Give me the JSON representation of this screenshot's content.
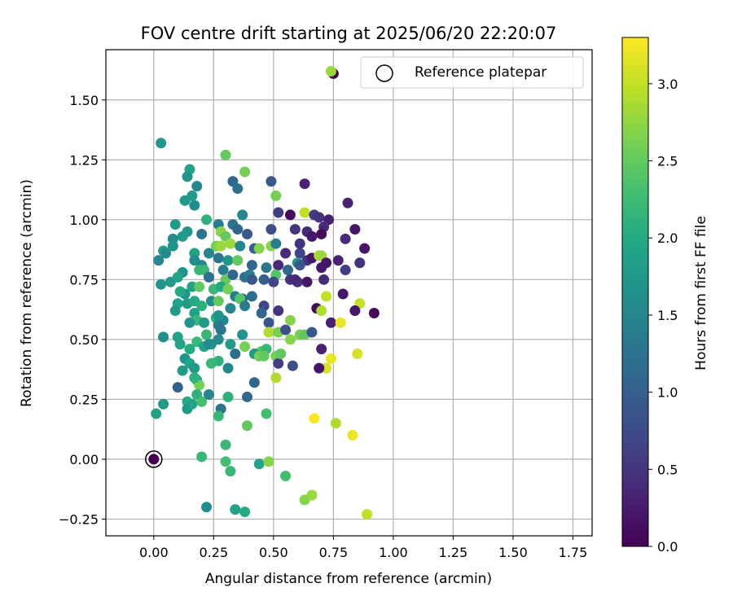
{
  "chart_data": {
    "type": "scatter",
    "title": "FOV centre drift starting at 2025/06/20 22:20:07",
    "xlabel": "Angular distance from reference (arcmin)",
    "ylabel": "Rotation from reference (arcmin)",
    "xlim": [
      -0.2,
      1.83
    ],
    "ylim": [
      -0.32,
      1.71
    ],
    "x_ticks": [
      0.0,
      0.25,
      0.5,
      0.75,
      1.0,
      1.25,
      1.5,
      1.75
    ],
    "x_tick_labels": [
      "0.00",
      "0.25",
      "0.50",
      "0.75",
      "1.00",
      "1.25",
      "1.50",
      "1.75"
    ],
    "y_ticks": [
      -0.25,
      0.0,
      0.25,
      0.5,
      0.75,
      1.0,
      1.25,
      1.5
    ],
    "y_tick_labels": [
      "−0.25",
      "0.00",
      "0.25",
      "0.50",
      "0.75",
      "1.00",
      "1.25",
      "1.50"
    ],
    "grid": true,
    "legend": {
      "placement": "top-right",
      "entries": [
        "Reference platepar"
      ]
    },
    "colorbar": {
      "label": "Hours from first FF file",
      "range": [
        0.0,
        3.3
      ],
      "ticks": [
        0.0,
        0.5,
        1.0,
        1.5,
        2.0,
        2.5,
        3.0
      ],
      "tick_labels": [
        "0.0",
        "0.5",
        "1.0",
        "1.5",
        "2.0",
        "2.5",
        "3.0"
      ],
      "colormap": "viridis"
    },
    "reference_point": {
      "x": 0.0,
      "y": 0.0,
      "c": 0.0
    },
    "points": [
      [
        0.75,
        1.61,
        0.05
      ],
      [
        0.74,
        1.62,
        2.8
      ],
      [
        0.03,
        1.32,
        1.7
      ],
      [
        0.3,
        1.27,
        2.5
      ],
      [
        0.33,
        1.16,
        1.1
      ],
      [
        0.35,
        1.13,
        1.2
      ],
      [
        0.38,
        1.2,
        2.6
      ],
      [
        0.49,
        1.16,
        0.9
      ],
      [
        0.15,
        1.21,
        1.9
      ],
      [
        0.14,
        1.18,
        1.7
      ],
      [
        0.18,
        1.14,
        1.5
      ],
      [
        0.16,
        1.1,
        1.8
      ],
      [
        0.63,
        1.15,
        0.3
      ],
      [
        0.51,
        1.1,
        2.6
      ],
      [
        0.13,
        1.08,
        1.8
      ],
      [
        0.17,
        1.06,
        1.6
      ],
      [
        0.81,
        1.07,
        0.3
      ],
      [
        0.63,
        1.03,
        3.0
      ],
      [
        0.57,
        1.02,
        0.1
      ],
      [
        0.52,
        1.03,
        0.6
      ],
      [
        0.67,
        1.02,
        0.6
      ],
      [
        0.69,
        1.01,
        0.5
      ],
      [
        0.73,
        1.0,
        0.3
      ],
      [
        0.71,
        0.97,
        0.4
      ],
      [
        0.22,
        1.0,
        2.1
      ],
      [
        0.27,
        0.98,
        1.4
      ],
      [
        0.33,
        0.98,
        1.3
      ],
      [
        0.37,
        1.02,
        1.5
      ],
      [
        0.09,
        0.98,
        1.8
      ],
      [
        0.14,
        0.95,
        1.7
      ],
      [
        0.2,
        0.94,
        1.3
      ],
      [
        0.28,
        0.95,
        2.7
      ],
      [
        0.3,
        0.93,
        2.5
      ],
      [
        0.39,
        0.94,
        0.9
      ],
      [
        0.49,
        0.96,
        0.8
      ],
      [
        0.59,
        0.96,
        0.5
      ],
      [
        0.64,
        0.95,
        0.4
      ],
      [
        0.66,
        0.93,
        0.2
      ],
      [
        0.7,
        0.94,
        0.1
      ],
      [
        0.84,
        0.96,
        0.2
      ],
      [
        0.8,
        0.92,
        0.4
      ],
      [
        0.12,
        0.93,
        1.8
      ],
      [
        0.08,
        0.92,
        1.6
      ],
      [
        0.08,
        0.89,
        1.7
      ],
      [
        0.04,
        0.87,
        1.9
      ],
      [
        0.17,
        0.86,
        1.9
      ],
      [
        0.23,
        0.86,
        1.5
      ],
      [
        0.26,
        0.89,
        2.6
      ],
      [
        0.28,
        0.89,
        2.8
      ],
      [
        0.32,
        0.9,
        2.8
      ],
      [
        0.36,
        0.89,
        1.5
      ],
      [
        0.42,
        0.88,
        1.0
      ],
      [
        0.44,
        0.88,
        2.7
      ],
      [
        0.49,
        0.89,
        2.7
      ],
      [
        0.51,
        0.9,
        1.4
      ],
      [
        0.55,
        0.86,
        0.4
      ],
      [
        0.61,
        0.86,
        0.7
      ],
      [
        0.64,
        0.83,
        0.5
      ],
      [
        0.66,
        0.84,
        0.2
      ],
      [
        0.69,
        0.85,
        2.9
      ],
      [
        0.7,
        0.85,
        2.8
      ],
      [
        0.72,
        0.82,
        0.2
      ],
      [
        0.77,
        0.83,
        0.3
      ],
      [
        0.8,
        0.79,
        0.6
      ],
      [
        0.86,
        0.82,
        0.5
      ],
      [
        0.88,
        0.88,
        0.2
      ],
      [
        0.02,
        0.83,
        1.5
      ],
      [
        0.05,
        0.86,
        1.6
      ],
      [
        0.17,
        0.83,
        1.6
      ],
      [
        0.2,
        0.81,
        1.5
      ],
      [
        0.27,
        0.84,
        1.3
      ],
      [
        0.31,
        0.83,
        1.7
      ],
      [
        0.35,
        0.83,
        2.5
      ],
      [
        0.41,
        0.81,
        1.1
      ],
      [
        0.47,
        0.8,
        1.3
      ],
      [
        0.52,
        0.81,
        0.4
      ],
      [
        0.56,
        0.79,
        1.1
      ],
      [
        0.6,
        0.82,
        1.7
      ],
      [
        0.61,
        0.81,
        0.9
      ],
      [
        0.7,
        0.8,
        0.2
      ],
      [
        0.12,
        0.78,
        1.7
      ],
      [
        0.19,
        0.79,
        2.2
      ],
      [
        0.21,
        0.79,
        2.2
      ],
      [
        0.23,
        0.76,
        1.2
      ],
      [
        0.29,
        0.79,
        1.4
      ],
      [
        0.3,
        0.75,
        2.5
      ],
      [
        0.33,
        0.77,
        1.1
      ],
      [
        0.38,
        0.76,
        1.2
      ],
      [
        0.4,
        0.77,
        1.4
      ],
      [
        0.41,
        0.75,
        0.9
      ],
      [
        0.46,
        0.75,
        1.0
      ],
      [
        0.51,
        0.77,
        2.4
      ],
      [
        0.57,
        0.75,
        0.5
      ],
      [
        0.6,
        0.74,
        0.5
      ],
      [
        0.64,
        0.74,
        0.2
      ],
      [
        0.71,
        0.75,
        0.4
      ],
      [
        0.03,
        0.73,
        1.7
      ],
      [
        0.07,
        0.74,
        1.8
      ],
      [
        0.1,
        0.76,
        1.9
      ],
      [
        0.13,
        0.69,
        1.7
      ],
      [
        0.16,
        0.72,
        1.9
      ],
      [
        0.19,
        0.72,
        2.5
      ],
      [
        0.25,
        0.71,
        2.2
      ],
      [
        0.28,
        0.72,
        2.0
      ],
      [
        0.31,
        0.71,
        2.6
      ],
      [
        0.34,
        0.68,
        1.4
      ],
      [
        0.37,
        0.67,
        1.0
      ],
      [
        0.41,
        0.68,
        1.2
      ],
      [
        0.5,
        0.74,
        0.7
      ],
      [
        0.11,
        0.7,
        2.0
      ],
      [
        0.1,
        0.65,
        1.9
      ],
      [
        0.14,
        0.65,
        1.8
      ],
      [
        0.17,
        0.66,
        2.0
      ],
      [
        0.2,
        0.64,
        2.1
      ],
      [
        0.24,
        0.66,
        1.6
      ],
      [
        0.27,
        0.66,
        2.5
      ],
      [
        0.32,
        0.63,
        1.5
      ],
      [
        0.36,
        0.67,
        2.4
      ],
      [
        0.38,
        0.64,
        1.4
      ],
      [
        0.72,
        0.68,
        3.0
      ],
      [
        0.79,
        0.69,
        0.2
      ],
      [
        0.86,
        0.65,
        3.0
      ],
      [
        0.09,
        0.62,
        1.8
      ],
      [
        0.17,
        0.61,
        1.9
      ],
      [
        0.18,
        0.58,
        2.2
      ],
      [
        0.15,
        0.57,
        1.7
      ],
      [
        0.21,
        0.57,
        1.8
      ],
      [
        0.26,
        0.59,
        2.1
      ],
      [
        0.29,
        0.58,
        1.5
      ],
      [
        0.46,
        0.64,
        0.7
      ],
      [
        0.52,
        0.62,
        0.5
      ],
      [
        0.45,
        0.61,
        1.1
      ],
      [
        0.68,
        0.63,
        0.1
      ],
      [
        0.84,
        0.62,
        0.2
      ],
      [
        0.7,
        0.62,
        2.9
      ],
      [
        0.92,
        0.61,
        0.1
      ],
      [
        0.27,
        0.56,
        1.4
      ],
      [
        0.28,
        0.54,
        1.3
      ],
      [
        0.22,
        0.52,
        2.2
      ],
      [
        0.24,
        0.48,
        1.7
      ],
      [
        0.27,
        0.5,
        1.6
      ],
      [
        0.32,
        0.48,
        1.8
      ],
      [
        0.37,
        0.52,
        1.7
      ],
      [
        0.48,
        0.57,
        0.9
      ],
      [
        0.48,
        0.53,
        2.9
      ],
      [
        0.52,
        0.53,
        2.6
      ],
      [
        0.55,
        0.54,
        0.8
      ],
      [
        0.57,
        0.58,
        2.7
      ],
      [
        0.61,
        0.52,
        2.6
      ],
      [
        0.63,
        0.52,
        2.5
      ],
      [
        0.66,
        0.53,
        0.9
      ],
      [
        0.74,
        0.57,
        0.3
      ],
      [
        0.78,
        0.57,
        3.2
      ],
      [
        0.04,
        0.51,
        1.6
      ],
      [
        0.1,
        0.51,
        1.9
      ],
      [
        0.11,
        0.48,
        1.9
      ],
      [
        0.15,
        0.46,
        2.0
      ],
      [
        0.18,
        0.49,
        2.2
      ],
      [
        0.21,
        0.47,
        1.9
      ],
      [
        0.23,
        0.48,
        1.6
      ],
      [
        0.38,
        0.47,
        2.6
      ],
      [
        0.43,
        0.44,
        1.5
      ],
      [
        0.45,
        0.45,
        2.4
      ],
      [
        0.47,
        0.46,
        2.2
      ],
      [
        0.51,
        0.43,
        2.6
      ],
      [
        0.52,
        0.4,
        0.6
      ],
      [
        0.53,
        0.44,
        2.5
      ],
      [
        0.57,
        0.5,
        2.7
      ],
      [
        0.58,
        0.39,
        0.8
      ],
      [
        0.7,
        0.46,
        0.3
      ],
      [
        0.72,
        0.38,
        3.1
      ],
      [
        0.74,
        0.42,
        3.2
      ],
      [
        0.85,
        0.44,
        3.1
      ],
      [
        0.13,
        0.42,
        1.7
      ],
      [
        0.15,
        0.4,
        1.9
      ],
      [
        0.17,
        0.38,
        1.8
      ],
      [
        0.18,
        0.33,
        1.9
      ],
      [
        0.12,
        0.37,
        1.8
      ],
      [
        0.19,
        0.31,
        2.6
      ],
      [
        0.24,
        0.4,
        2.1
      ],
      [
        0.27,
        0.41,
        2.1
      ],
      [
        0.31,
        0.38,
        1.5
      ],
      [
        0.34,
        0.44,
        1.2
      ],
      [
        0.42,
        0.44,
        1.8
      ],
      [
        0.44,
        0.43,
        2.6
      ],
      [
        0.46,
        0.43,
        2.5
      ],
      [
        0.51,
        0.34,
        2.9
      ],
      [
        0.69,
        0.38,
        0.2
      ],
      [
        0.1,
        0.3,
        1.0
      ],
      [
        0.17,
        0.34,
        2.1
      ],
      [
        0.18,
        0.27,
        2.1
      ],
      [
        0.14,
        0.24,
        2.0
      ],
      [
        0.14,
        0.21,
        1.8
      ],
      [
        0.16,
        0.23,
        1.9
      ],
      [
        0.2,
        0.24,
        2.3
      ],
      [
        0.23,
        0.27,
        1.5
      ],
      [
        0.28,
        0.21,
        1.3
      ],
      [
        0.31,
        0.26,
        2.1
      ],
      [
        0.39,
        0.26,
        1.1
      ],
      [
        0.42,
        0.32,
        1.1
      ],
      [
        0.47,
        0.19,
        2.3
      ],
      [
        0.04,
        0.23,
        1.8
      ],
      [
        0.01,
        0.19,
        1.9
      ],
      [
        0.27,
        0.18,
        2.2
      ],
      [
        0.39,
        0.14,
        2.5
      ],
      [
        0.67,
        0.17,
        3.3
      ],
      [
        0.76,
        0.15,
        2.9
      ],
      [
        0.83,
        0.1,
        3.2
      ],
      [
        0.2,
        0.01,
        2.2
      ],
      [
        0.3,
        0.06,
        2.2
      ],
      [
        0.3,
        -0.01,
        2.3
      ],
      [
        0.32,
        -0.05,
        2.2
      ],
      [
        0.44,
        -0.02,
        1.9
      ],
      [
        0.48,
        -0.01,
        2.7
      ],
      [
        0.55,
        -0.07,
        2.3
      ],
      [
        0.63,
        -0.17,
        2.7
      ],
      [
        0.66,
        -0.15,
        2.8
      ],
      [
        0.89,
        -0.23,
        3.0
      ],
      [
        0.22,
        -0.2,
        1.6
      ],
      [
        0.34,
        -0.21,
        1.9
      ],
      [
        0.38,
        -0.22,
        2.0
      ],
      [
        0.61,
        0.9,
        0.5
      ],
      [
        0.59,
        0.75,
        0.4
      ],
      [
        0.35,
        0.96,
        1.1
      ],
      [
        0.27,
        0.6,
        1.7
      ],
      [
        0.24,
        0.4,
        2.2
      ]
    ]
  }
}
